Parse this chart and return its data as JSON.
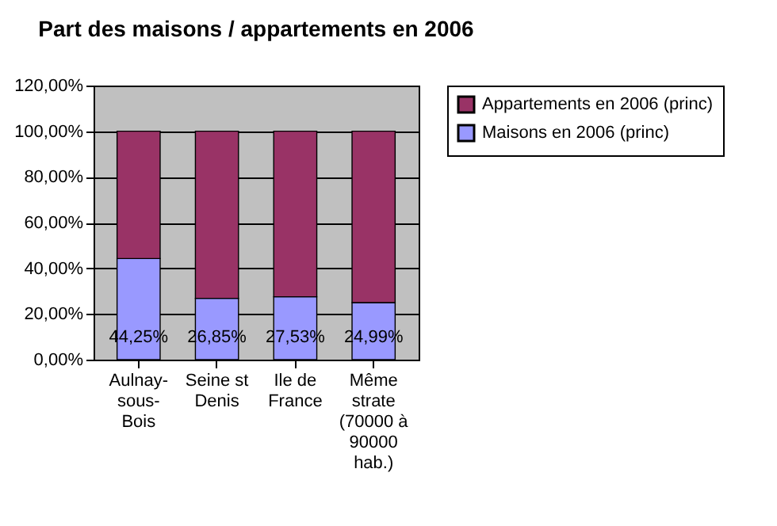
{
  "chart_data": {
    "type": "bar",
    "title": "Part des maisons / appartements en 2006",
    "categories": [
      "Aulnay-sous-Bois",
      "Seine st Denis",
      "Ile de France",
      "Même strate (70000 à 90000 hab.)"
    ],
    "stacked": true,
    "legend": "right",
    "grid": "y",
    "ylim": [
      0,
      120
    ],
    "yticks": [
      {
        "value": 0,
        "label": "0,00%"
      },
      {
        "value": 20,
        "label": "20,00%"
      },
      {
        "value": 40,
        "label": "40,00%"
      },
      {
        "value": 60,
        "label": "60,00%"
      },
      {
        "value": 80,
        "label": "80,00%"
      },
      {
        "value": 100,
        "label": "100,00%"
      },
      {
        "value": 120,
        "label": "120,00%"
      }
    ],
    "series": [
      {
        "name": "Maisons en 2006 (princ)",
        "color": "#9999ff",
        "values": [
          44.25,
          26.85,
          27.53,
          24.99
        ],
        "value_labels": [
          "44,25%",
          "26,85%",
          "27,53%",
          "24,99%"
        ]
      },
      {
        "name": "Appartements en 2006 (princ)",
        "color": "#993366",
        "values": [
          55.75,
          73.15,
          72.47,
          75.01
        ]
      }
    ]
  }
}
